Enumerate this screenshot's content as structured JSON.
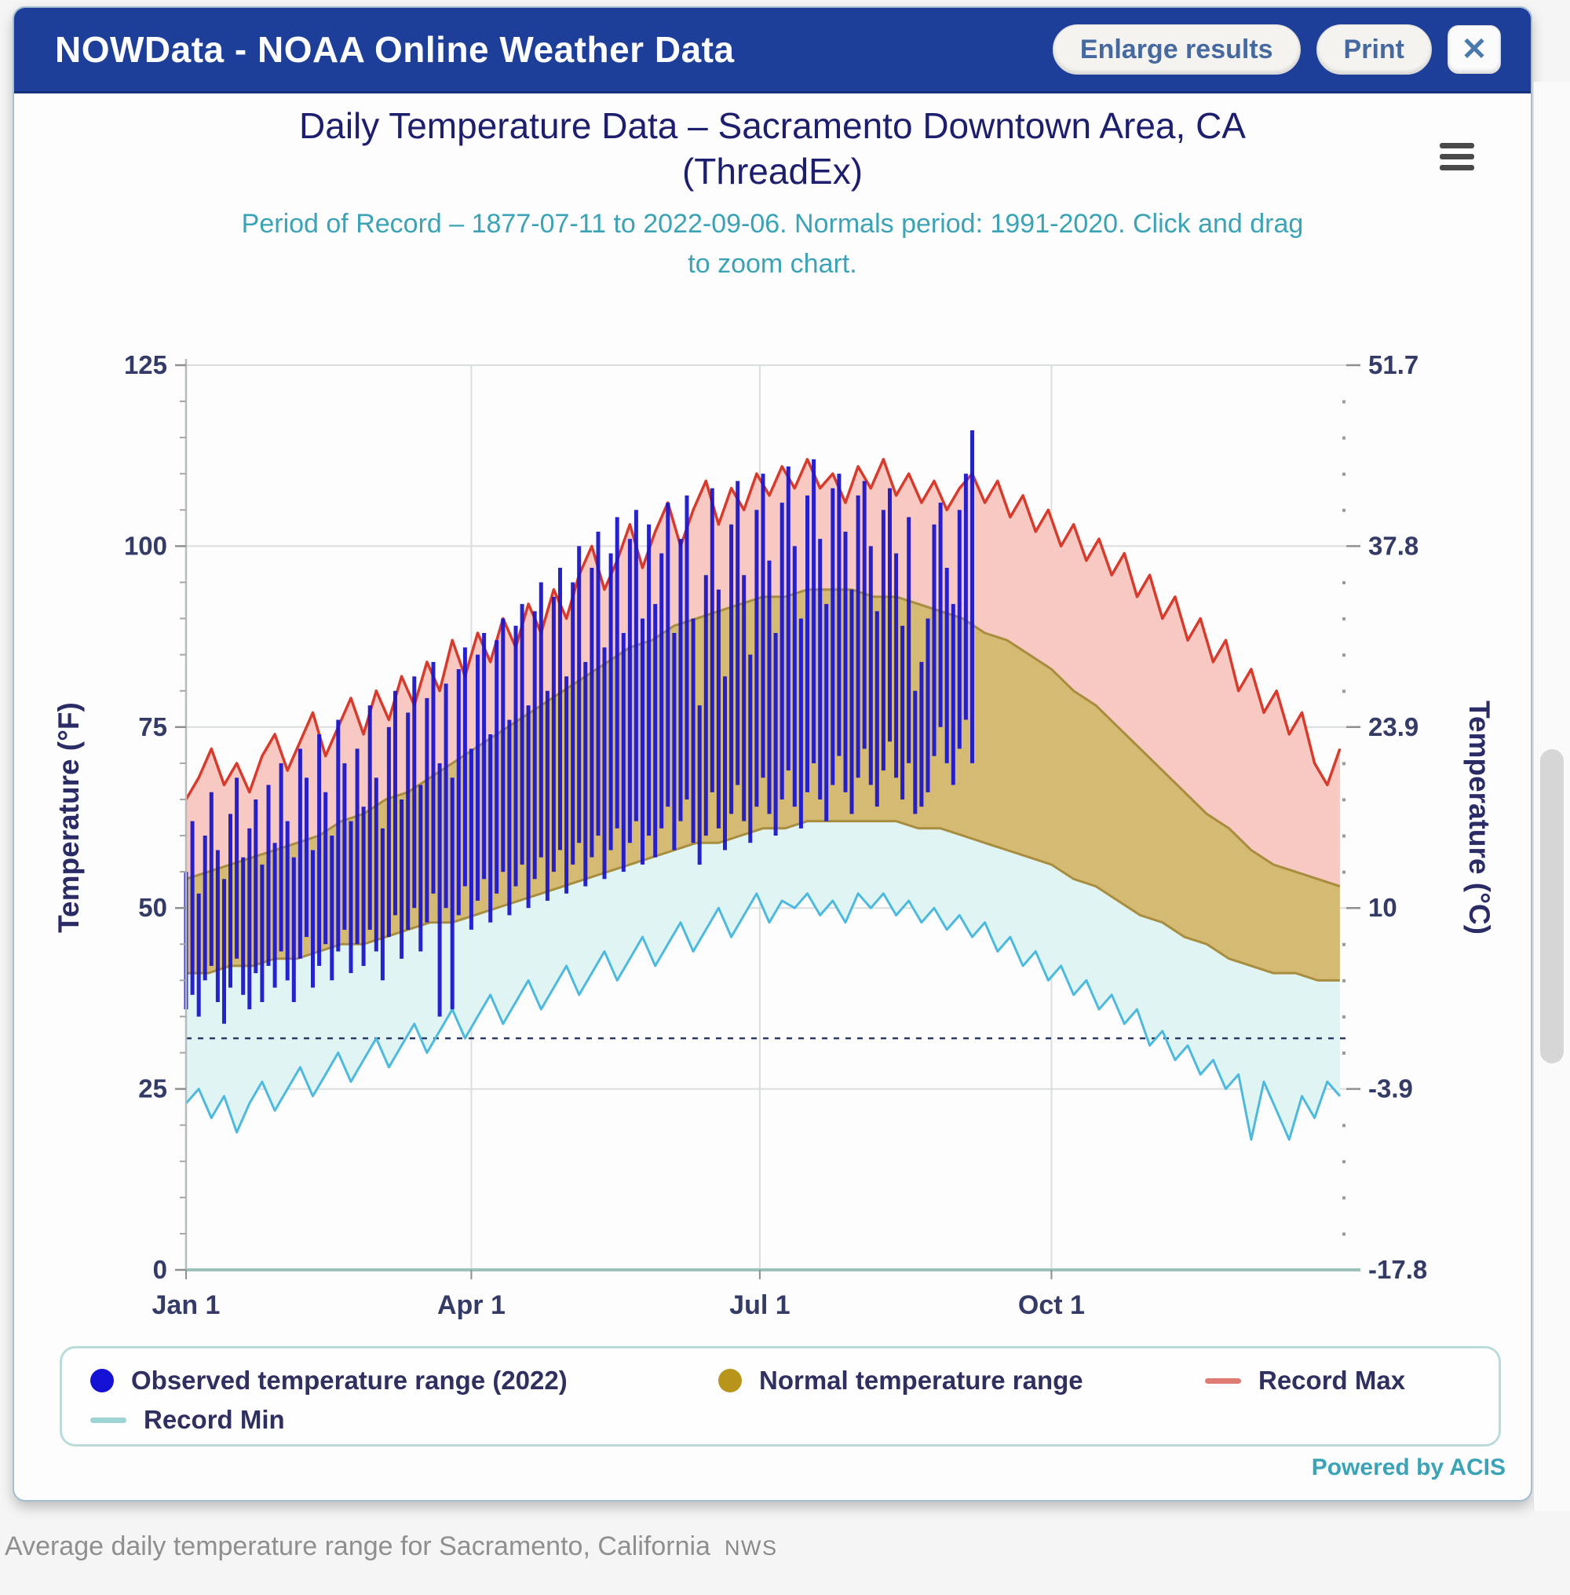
{
  "window": {
    "title": "NOWData - NOAA Online Weather Data",
    "buttons": {
      "enlarge": "Enlarge results",
      "print": "Print",
      "close": "✕"
    }
  },
  "chart_header": {
    "title_line1": "Daily Temperature Data – Sacramento Downtown Area, CA",
    "title_line2": "(ThreadEx)",
    "subtitle": "Period of Record – 1877-07-11 to 2022-09-06. Normals period: 1991-2020. Click and drag to zoom chart."
  },
  "legend": {
    "items": [
      {
        "marker": "circle",
        "color": "#1512d6",
        "label": "Observed temperature range (2022)"
      },
      {
        "marker": "circle",
        "color": "#b9941b",
        "label": "Normal temperature range"
      },
      {
        "marker": "line",
        "color": "#de7b72",
        "label": "Record Max"
      },
      {
        "marker": "line",
        "color": "#9fd4d4",
        "label": "Record Min"
      }
    ]
  },
  "footer": {
    "powered_by": "Powered by ACIS",
    "caption": "Average daily temperature range for Sacramento, California",
    "source_tag": "NWS"
  },
  "brand_colors": {
    "header_bg": "#1d3e99",
    "button_text": "#46699f",
    "title_navy": "#1d1e6e",
    "subtitle_teal": "#3aa3b6"
  },
  "chart_data": {
    "type": "bar",
    "title": "Daily Temperature Data – Sacramento Downtown Area, CA (ThreadEx)",
    "subtitle": "Period of Record – 1877-07-11 to 2022-09-06. Normals period: 1991-2020.",
    "x_axis": {
      "total_days": 366,
      "ticks": [
        {
          "label": "Jan 1",
          "day": 0
        },
        {
          "label": "Apr 1",
          "day": 90
        },
        {
          "label": "Jul 1",
          "day": 181
        },
        {
          "label": "Oct 1",
          "day": 273
        }
      ]
    },
    "y_axis_f": {
      "label": "Temperature (°F)",
      "min": 0,
      "max": 125,
      "ticks": [
        0,
        25,
        50,
        75,
        100,
        125
      ],
      "minor_step": 5
    },
    "y_axis_c": {
      "label": "Temperature (°C)",
      "tick_labels": [
        "-17.8",
        "-3.9",
        "10",
        "23.9",
        "37.8",
        "51.7"
      ]
    },
    "freezing_line_f": 32,
    "grid": true,
    "legend_position": "bottom",
    "series": [
      {
        "name": "Record Max",
        "type": "line",
        "step_days": 4,
        "values": [
          65,
          68,
          72,
          67,
          70,
          66,
          71,
          74,
          69,
          73,
          77,
          71,
          75,
          79,
          74,
          80,
          76,
          82,
          78,
          84,
          80,
          87,
          82,
          88,
          84,
          90,
          86,
          92,
          88,
          94,
          90,
          96,
          100,
          94,
          98,
          103,
          97,
          102,
          106,
          100,
          105,
          109,
          103,
          108,
          105,
          110,
          107,
          111,
          108,
          112,
          108,
          110,
          106,
          111,
          108,
          112,
          107,
          110,
          106,
          109,
          105,
          108,
          110,
          106,
          109,
          104,
          107,
          102,
          105,
          100,
          103,
          98,
          101,
          96,
          99,
          93,
          96,
          90,
          93,
          87,
          90,
          84,
          87,
          80,
          83,
          77,
          80,
          74,
          77,
          70,
          67,
          72
        ]
      },
      {
        "name": "Normal Max (top of normal range)",
        "type": "area-edge",
        "step_days": 7,
        "values": [
          54,
          55,
          56,
          57,
          58,
          59,
          60,
          62,
          63,
          65,
          66,
          68,
          70,
          72,
          74,
          76,
          78,
          80,
          82,
          84,
          86,
          87,
          89,
          90,
          91,
          92,
          93,
          93,
          94,
          94,
          94,
          93,
          93,
          92,
          91,
          90,
          88,
          87,
          85,
          83,
          80,
          78,
          75,
          72,
          69,
          66,
          63,
          61,
          58,
          56,
          55,
          54,
          53
        ]
      },
      {
        "name": "Normal Min (bottom of normal range)",
        "type": "area-edge",
        "step_days": 7,
        "values": [
          41,
          41,
          42,
          42,
          43,
          43,
          44,
          45,
          45,
          46,
          47,
          48,
          48,
          49,
          50,
          51,
          52,
          53,
          54,
          55,
          56,
          57,
          58,
          59,
          59,
          60,
          61,
          61,
          62,
          62,
          62,
          62,
          62,
          61,
          61,
          60,
          59,
          58,
          57,
          56,
          54,
          53,
          51,
          49,
          48,
          46,
          45,
          43,
          42,
          41,
          41,
          40,
          40
        ]
      },
      {
        "name": "Record Min",
        "type": "line",
        "step_days": 4,
        "values": [
          23,
          25,
          21,
          24,
          19,
          23,
          26,
          22,
          25,
          28,
          24,
          27,
          30,
          26,
          29,
          32,
          28,
          31,
          34,
          30,
          33,
          36,
          32,
          35,
          38,
          34,
          37,
          40,
          36,
          39,
          42,
          38,
          41,
          44,
          40,
          43,
          46,
          42,
          45,
          48,
          44,
          47,
          50,
          46,
          49,
          52,
          48,
          51,
          50,
          52,
          49,
          51,
          48,
          52,
          50,
          52,
          49,
          51,
          48,
          50,
          47,
          49,
          46,
          48,
          44,
          46,
          42,
          44,
          40,
          42,
          38,
          40,
          36,
          38,
          34,
          36,
          31,
          33,
          29,
          31,
          27,
          29,
          25,
          27,
          18,
          26,
          22,
          18,
          24,
          21,
          26,
          24
        ]
      }
    ],
    "observed": {
      "name": "Observed temperature range (2022)",
      "start_day": 0,
      "step_days": 2,
      "end_date_note": "data through 2022-09-06",
      "ranges": [
        [
          36,
          55
        ],
        [
          38,
          62
        ],
        [
          35,
          52
        ],
        [
          40,
          60
        ],
        [
          42,
          66
        ],
        [
          37,
          58
        ],
        [
          34,
          54
        ],
        [
          39,
          63
        ],
        [
          43,
          68
        ],
        [
          38,
          57
        ],
        [
          36,
          61
        ],
        [
          41,
          65
        ],
        [
          37,
          56
        ],
        [
          42,
          67
        ],
        [
          39,
          59
        ],
        [
          44,
          70
        ],
        [
          40,
          62
        ],
        [
          37,
          57
        ],
        [
          43,
          72
        ],
        [
          46,
          68
        ],
        [
          39,
          58
        ],
        [
          42,
          74
        ],
        [
          45,
          66
        ],
        [
          40,
          60
        ],
        [
          44,
          76
        ],
        [
          47,
          70
        ],
        [
          41,
          62
        ],
        [
          45,
          72
        ],
        [
          42,
          64
        ],
        [
          47,
          78
        ],
        [
          44,
          68
        ],
        [
          40,
          61
        ],
        [
          46,
          75
        ],
        [
          49,
          80
        ],
        [
          43,
          65
        ],
        [
          47,
          77
        ],
        [
          50,
          82
        ],
        [
          44,
          67
        ],
        [
          48,
          79
        ],
        [
          52,
          84
        ],
        [
          35,
          70
        ],
        [
          50,
          81
        ],
        [
          36,
          68
        ],
        [
          49,
          83
        ],
        [
          53,
          86
        ],
        [
          47,
          72
        ],
        [
          51,
          85
        ],
        [
          54,
          88
        ],
        [
          48,
          74
        ],
        [
          52,
          87
        ],
        [
          55,
          90
        ],
        [
          49,
          76
        ],
        [
          53,
          89
        ],
        [
          56,
          92
        ],
        [
          50,
          78
        ],
        [
          54,
          91
        ],
        [
          57,
          95
        ],
        [
          51,
          80
        ],
        [
          55,
          93
        ],
        [
          58,
          97
        ],
        [
          52,
          82
        ],
        [
          56,
          95
        ],
        [
          59,
          100
        ],
        [
          53,
          84
        ],
        [
          57,
          97
        ],
        [
          60,
          102
        ],
        [
          54,
          86
        ],
        [
          58,
          99
        ],
        [
          61,
          104
        ],
        [
          55,
          88
        ],
        [
          59,
          101
        ],
        [
          62,
          105
        ],
        [
          56,
          90
        ],
        [
          60,
          103
        ],
        [
          57,
          92
        ],
        [
          61,
          99
        ],
        [
          64,
          106
        ],
        [
          58,
          88
        ],
        [
          62,
          101
        ],
        [
          65,
          107
        ],
        [
          59,
          90
        ],
        [
          56,
          78
        ],
        [
          60,
          96
        ],
        [
          66,
          108
        ],
        [
          61,
          94
        ],
        [
          58,
          82
        ],
        [
          63,
          103
        ],
        [
          67,
          109
        ],
        [
          62,
          96
        ],
        [
          59,
          85
        ],
        [
          64,
          105
        ],
        [
          68,
          110
        ],
        [
          63,
          98
        ],
        [
          60,
          88
        ],
        [
          65,
          106
        ],
        [
          69,
          111
        ],
        [
          64,
          100
        ],
        [
          61,
          90
        ],
        [
          66,
          107
        ],
        [
          70,
          112
        ],
        [
          65,
          101
        ],
        [
          62,
          92
        ],
        [
          67,
          108
        ],
        [
          71,
          110
        ],
        [
          66,
          102
        ],
        [
          63,
          94
        ],
        [
          68,
          107
        ],
        [
          72,
          109
        ],
        [
          67,
          100
        ],
        [
          64,
          91
        ],
        [
          69,
          105
        ],
        [
          73,
          108
        ],
        [
          68,
          99
        ],
        [
          65,
          89
        ],
        [
          70,
          104
        ],
        [
          63,
          80
        ],
        [
          64,
          84
        ],
        [
          66,
          90
        ],
        [
          71,
          103
        ],
        [
          75,
          106
        ],
        [
          70,
          97
        ],
        [
          67,
          92
        ],
        [
          72,
          105
        ],
        [
          76,
          110
        ],
        [
          70,
          116
        ]
      ]
    },
    "colors": {
      "observed_bar": "#1a16cf",
      "record_max_line": "#d93a2b",
      "record_max_fill": "#f7c9c2",
      "normal_fill": "#d5ba74",
      "normal_edge": "#a88d3f",
      "record_min_line": "#4cb9de",
      "record_min_fill": "#e0f4f4",
      "freezing_line": "#2a3a63",
      "grid": "#dadddd",
      "axis_line": "#b6bcbc",
      "x_axis_line": "#9cc3bb",
      "tick_mark": "#8f8f8f",
      "tick_text": "#343b66",
      "axis_title": "#2b2c66"
    }
  }
}
